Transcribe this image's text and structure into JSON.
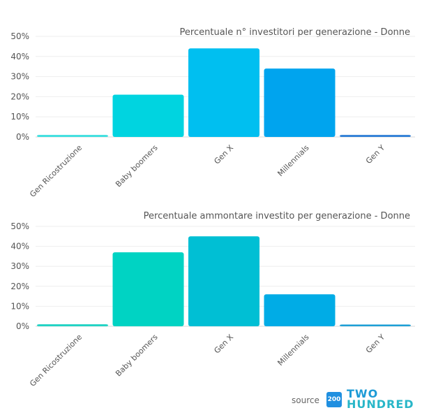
{
  "chart_data": [
    {
      "type": "bar",
      "title": "Percentuale n° investitori per generazione - Donne",
      "categories": [
        "Gen Ricostruzione",
        "Baby boomers",
        "Gen X",
        "Millennials",
        "Gen Y"
      ],
      "values": [
        1,
        21,
        44,
        34,
        1
      ],
      "colors": [
        "#3ddfdf",
        "#00d4e0",
        "#00bff0",
        "#00a4ee",
        "#2f7fd6"
      ],
      "yticks": [
        "0%",
        "10%",
        "20%",
        "30%",
        "40%",
        "50%"
      ],
      "ylim": [
        0,
        50
      ],
      "xlabel": "",
      "ylabel": "",
      "grid": true
    },
    {
      "type": "bar",
      "title": "Percentuale ammontare investito per generazione - Donne",
      "categories": [
        "Gen Ricostruzione",
        "Baby boomers",
        "Gen X",
        "Millennials",
        "Gen Y"
      ],
      "values": [
        1,
        37,
        45,
        16,
        0.3
      ],
      "colors": [
        "#22d3c4",
        "#00d3c3",
        "#00bfd4",
        "#00ace6",
        "#1e9fd6"
      ],
      "yticks": [
        "0%",
        "10%",
        "20%",
        "30%",
        "40%",
        "50%"
      ],
      "ylim": [
        0,
        50
      ],
      "xlabel": "",
      "ylabel": "",
      "grid": true
    }
  ],
  "footer": {
    "source_label": "source",
    "logo_mark": "200",
    "logo_line1": "TWO",
    "logo_line2": "HUNDRED"
  }
}
